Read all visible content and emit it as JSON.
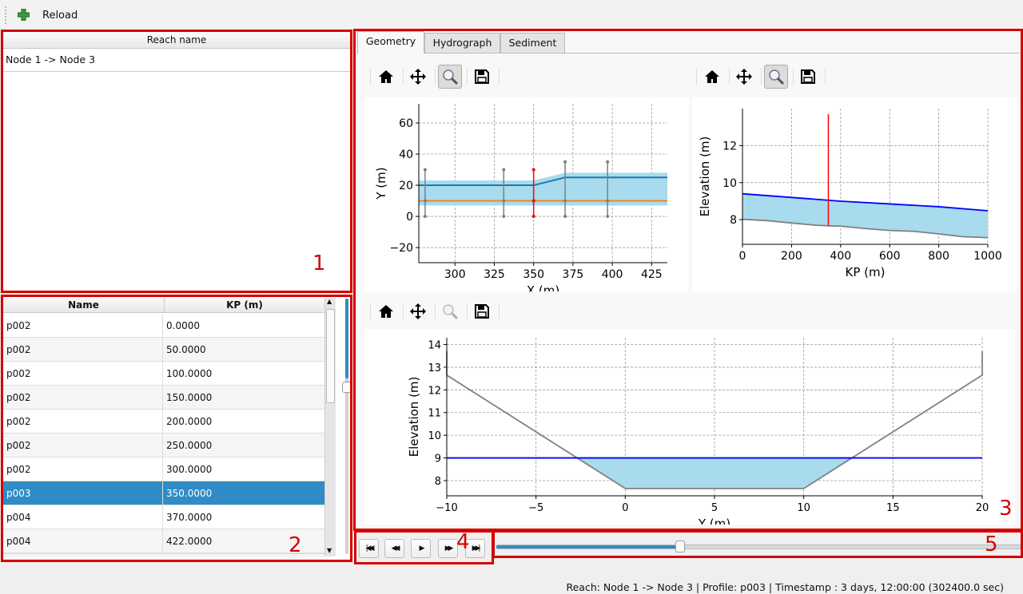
{
  "toolbar": {
    "reload_label": "Reload",
    "reload_icon": "green-plus-icon"
  },
  "reach_panel": {
    "header": "Reach name",
    "rows": [
      "Node 1 -> Node 3"
    ],
    "marker": "1"
  },
  "profile_table": {
    "marker": "2",
    "headers": {
      "name": "Name",
      "kp": "KP (m)"
    },
    "rows": [
      {
        "name": "p002",
        "kp": "0.0000"
      },
      {
        "name": "p002",
        "kp": "50.0000"
      },
      {
        "name": "p002",
        "kp": "100.0000"
      },
      {
        "name": "p002",
        "kp": "150.0000"
      },
      {
        "name": "p002",
        "kp": "200.0000"
      },
      {
        "name": "p002",
        "kp": "250.0000"
      },
      {
        "name": "p002",
        "kp": "300.0000"
      },
      {
        "name": "p003",
        "kp": "350.0000",
        "selected": true
      },
      {
        "name": "p004",
        "kp": "370.0000"
      },
      {
        "name": "p004",
        "kp": "422.0000"
      }
    ],
    "selection_color": "#308cc6"
  },
  "main": {
    "marker": "3",
    "tabs": [
      {
        "label": "Geometry",
        "active": true
      },
      {
        "label": "Hydrograph"
      },
      {
        "label": "Sediment"
      }
    ],
    "plot_toolbar_icons": [
      "home-icon",
      "move-icon",
      "zoom-icon",
      "save-icon"
    ]
  },
  "playback": {
    "marker": "4",
    "buttons": [
      "first-icon",
      "rewind-icon",
      "play-icon",
      "fast-forward-icon",
      "last-icon"
    ],
    "labels": [
      "|◀◀",
      "◀◀",
      "▶",
      "▶▶",
      "▶▶|"
    ]
  },
  "timeline": {
    "marker": "5",
    "position_fraction": 0.35,
    "accent": "#308cc6"
  },
  "status": "Reach: Node 1 -> Node 3 | Profile: p003 | Timestamp : 3 days, 12:00:00 (302400.0 sec)",
  "chart_data": [
    {
      "type": "line",
      "id": "planimetry",
      "xlabel": "X (m)",
      "ylabel": "Y (m)",
      "xlim": [
        277,
        435
      ],
      "ylim": [
        -29.7,
        72.3
      ],
      "xticks": [
        300,
        325,
        350,
        375,
        400,
        425
      ],
      "yticks": [
        -20,
        0,
        20,
        40,
        60
      ],
      "ytick_labels": [
        "−20",
        "0",
        "20",
        "40",
        "60"
      ],
      "grid": true,
      "water_band": {
        "x": [
          277,
          350,
          370,
          435
        ],
        "lower": [
          7,
          7,
          7,
          7
        ],
        "upper": [
          23,
          23,
          28,
          28
        ],
        "color": "#a8dbee"
      },
      "series": [
        {
          "x": [
            277,
            350,
            370,
            435
          ],
          "y": [
            20,
            20,
            25,
            25
          ],
          "color": "#1f77b4"
        },
        {
          "x": [
            277,
            435
          ],
          "y": [
            10,
            10
          ],
          "color": "#ff7f0e"
        }
      ],
      "profiles": [
        {
          "x": 281,
          "y": [
            0,
            30
          ],
          "color": "#808080"
        },
        {
          "x": 331,
          "y": [
            0,
            30
          ],
          "color": "#808080"
        },
        {
          "x": 350,
          "y": [
            0,
            30
          ],
          "color": "#ff0000"
        },
        {
          "x": 370,
          "y": [
            0,
            35
          ],
          "color": "#808080"
        },
        {
          "x": 397,
          "y": [
            0,
            35
          ],
          "color": "#808080"
        }
      ]
    },
    {
      "type": "line",
      "id": "longitudinal",
      "xlabel": "KP (m)",
      "ylabel": "Elevation (m)",
      "xlim": [
        0,
        1000
      ],
      "ylim": [
        6.67,
        14
      ],
      "xticks": [
        0,
        200,
        400,
        600,
        800,
        1000
      ],
      "yticks": [
        8,
        10,
        12
      ],
      "grid": true,
      "series": [
        {
          "name": "water",
          "x": [
            0,
            200,
            400,
            600,
            800,
            1000
          ],
          "y": [
            9.4,
            9.2,
            9.0,
            8.85,
            8.7,
            8.48
          ],
          "color": "#0000ff"
        },
        {
          "name": "bed",
          "x": [
            0,
            100,
            200,
            300,
            350,
            400,
            500,
            600,
            700,
            800,
            900,
            1000
          ],
          "y": [
            8.02,
            7.95,
            7.82,
            7.7,
            7.67,
            7.65,
            7.52,
            7.42,
            7.37,
            7.23,
            7.08,
            7.03
          ],
          "color": "#808080"
        }
      ],
      "fill_color": "#a8dbee",
      "current_profile": {
        "x": 350,
        "y": [
          7.67,
          13.7
        ],
        "color": "#ff0000"
      }
    },
    {
      "type": "line",
      "id": "cross-section",
      "xlabel": "Y (m)",
      "ylabel": "Elevation (m)",
      "xlim": [
        -10,
        20
      ],
      "ylim": [
        7.33,
        14.3
      ],
      "xticks": [
        -10,
        -5,
        0,
        5,
        10,
        15,
        20
      ],
      "xtick_labels": [
        "−10",
        "−5",
        "0",
        "5",
        "10",
        "15",
        "20"
      ],
      "yticks": [
        8,
        9,
        10,
        11,
        12,
        13,
        14
      ],
      "grid": true,
      "series": [
        {
          "name": "bed",
          "x": [
            -10,
            -10,
            0,
            10,
            20,
            20
          ],
          "y": [
            13.7,
            12.65,
            7.65,
            7.65,
            12.65,
            13.7
          ],
          "color": "#808080"
        },
        {
          "name": "water",
          "x": [
            -10,
            20
          ],
          "y": [
            9.0,
            9.0
          ],
          "color": "#0000ff"
        }
      ],
      "fill": {
        "x": [
          -2.65,
          0,
          10,
          12.65
        ],
        "lower": [
          9.0,
          7.65,
          7.65,
          9.0
        ],
        "upper": 9.0,
        "color": "#a8dbee"
      }
    }
  ]
}
